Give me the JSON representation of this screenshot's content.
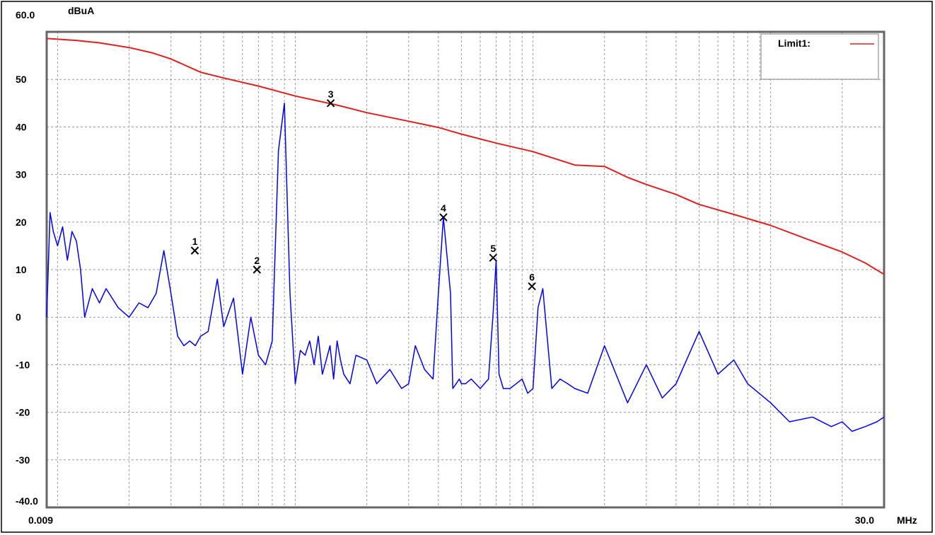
{
  "chart_data": {
    "type": "line",
    "title": "",
    "ylabel": "dBuA",
    "xlabel": "MHz",
    "x_scale": "log",
    "xlim": [
      0.009,
      30.0
    ],
    "ylim": [
      -40.0,
      60.0
    ],
    "x_tick_labels": [
      "0.009",
      "30.0"
    ],
    "y_tick_labels": [
      "60.0",
      "50",
      "40",
      "30",
      "20",
      "10",
      "0",
      "-10",
      "-20",
      "-30",
      "-40.0"
    ],
    "grid": true,
    "legend": {
      "position": "top-right",
      "entries": [
        {
          "label": "Limit1:",
          "color": "#e02020"
        }
      ]
    },
    "series": [
      {
        "name": "Limit1:",
        "color": "#e02020",
        "x": [
          0.009,
          0.012,
          0.015,
          0.02,
          0.025,
          0.03,
          0.04,
          0.05,
          0.07,
          0.1,
          0.15,
          0.2,
          0.3,
          0.4,
          0.5,
          0.7,
          1.0,
          1.5,
          2.0,
          2.5,
          3.0,
          4.0,
          5.0,
          7.0,
          10.0,
          15.0,
          20.0,
          25.0,
          30.0
        ],
        "y": [
          58.6,
          58.2,
          57.7,
          56.7,
          55.6,
          54.3,
          51.5,
          50.3,
          48.6,
          46.5,
          44.6,
          43.0,
          41.2,
          39.9,
          38.5,
          36.6,
          34.8,
          32.0,
          31.7,
          29.4,
          27.9,
          25.8,
          23.7,
          21.6,
          19.3,
          16.0,
          13.7,
          11.4,
          9.0
        ]
      },
      {
        "name": "",
        "color": "#0000ff",
        "x": [
          0.009,
          0.0093,
          0.0096,
          0.01,
          0.0105,
          0.011,
          0.0115,
          0.012,
          0.0125,
          0.013,
          0.014,
          0.015,
          0.016,
          0.018,
          0.02,
          0.022,
          0.024,
          0.026,
          0.028,
          0.03,
          0.032,
          0.034,
          0.036,
          0.038,
          0.04,
          0.043,
          0.047,
          0.05,
          0.055,
          0.06,
          0.065,
          0.07,
          0.075,
          0.08,
          0.085,
          0.09,
          0.095,
          0.1,
          0.105,
          0.11,
          0.115,
          0.12,
          0.125,
          0.13,
          0.135,
          0.14,
          0.145,
          0.15,
          0.155,
          0.16,
          0.17,
          0.18,
          0.2,
          0.22,
          0.25,
          0.28,
          0.3,
          0.32,
          0.35,
          0.38,
          0.4,
          0.42,
          0.45,
          0.46,
          0.475,
          0.49,
          0.5,
          0.52,
          0.55,
          0.6,
          0.65,
          0.68,
          0.7,
          0.72,
          0.75,
          0.8,
          0.85,
          0.9,
          0.95,
          1.0,
          1.05,
          1.1,
          1.2,
          1.3,
          1.4,
          1.5,
          1.7,
          2.0,
          2.5,
          3.0,
          3.5,
          4.0,
          5.0,
          6.0,
          7.0,
          8.0,
          10.0,
          12.0,
          15.0,
          18.0,
          20.0,
          22.0,
          25.0,
          28.0,
          30.0
        ],
        "y": [
          0,
          22,
          18,
          15,
          19,
          12,
          18,
          16,
          10,
          0,
          6,
          3,
          6,
          2,
          0,
          3,
          2,
          5,
          14,
          5,
          -4,
          -6,
          -5,
          -6,
          -4,
          -3,
          8,
          -2,
          4,
          -12,
          0,
          -8,
          -10,
          -5,
          35,
          45,
          5,
          -14,
          -7,
          -8,
          -5,
          -10,
          -4,
          -12,
          -9,
          -6,
          -13,
          -5,
          -9,
          -12,
          -14,
          -8,
          -9,
          -14,
          -11,
          -15,
          -14,
          -6,
          -11,
          -13,
          5,
          21,
          5,
          -15,
          -14,
          -13,
          -14,
          -14,
          -13,
          -15,
          -13,
          1,
          12,
          -12,
          -15,
          -15,
          -14,
          -13,
          -16,
          -15,
          2,
          6,
          -15,
          -13,
          -14,
          -15,
          -16,
          -6,
          -18,
          -10,
          -17,
          -14,
          -3,
          -12,
          -9,
          -14,
          -18,
          -22,
          -21,
          -23,
          -22,
          -24,
          -23,
          -22,
          -21
        ]
      }
    ],
    "markers": [
      {
        "label": "1",
        "x": 0.0378,
        "y": 14.0
      },
      {
        "label": "2",
        "x": 0.069,
        "y": 10.0
      },
      {
        "label": "3",
        "x": 0.141,
        "y": 45.0
      },
      {
        "label": "4",
        "x": 0.42,
        "y": 21.0
      },
      {
        "label": "5",
        "x": 0.68,
        "y": 12.5
      },
      {
        "label": "6",
        "x": 0.99,
        "y": 6.5
      }
    ]
  }
}
